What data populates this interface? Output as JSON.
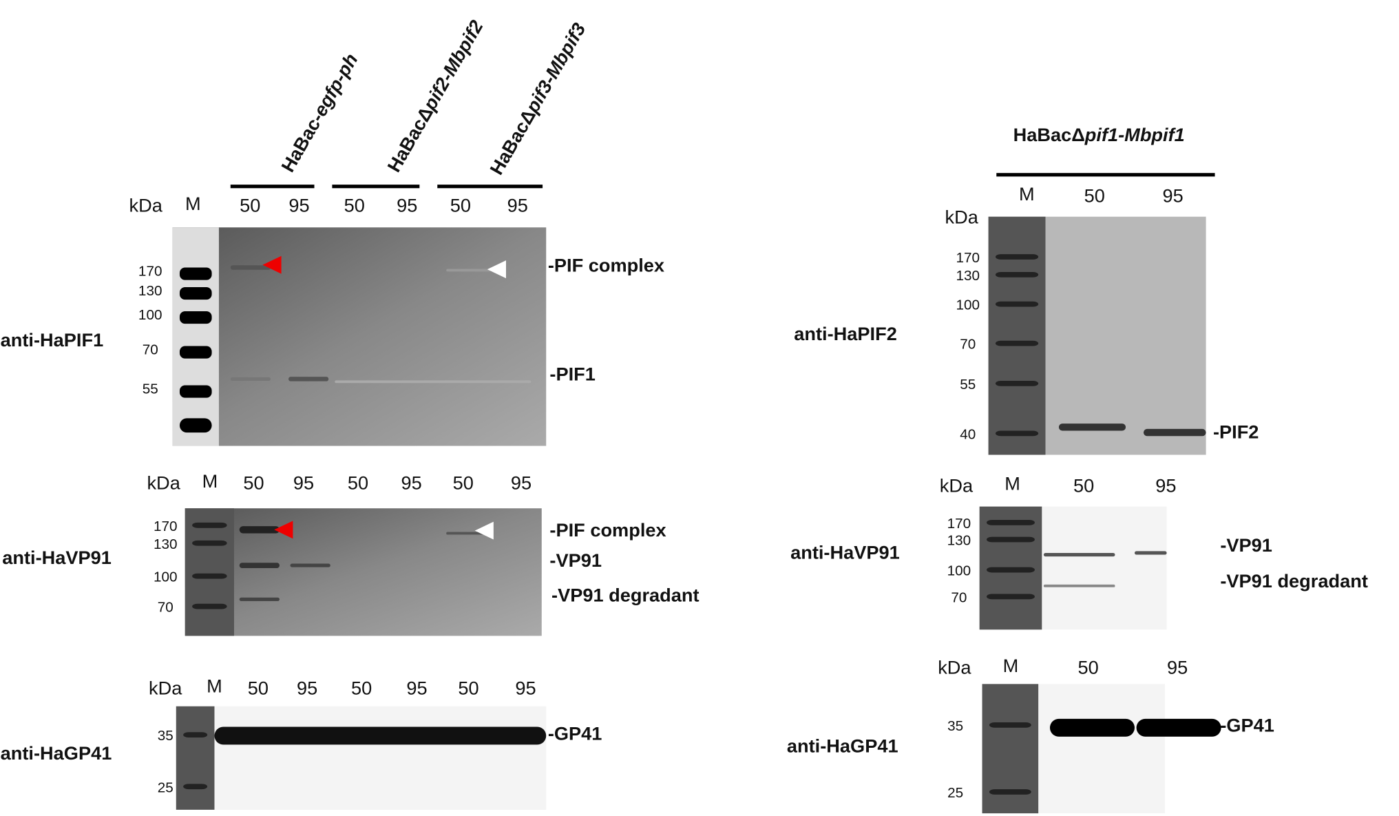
{
  "left": {
    "headers": [
      {
        "a": "HaBac-",
        "b": "egfp-ph"
      },
      {
        "a": "HaBacΔ",
        "b": "pif2-Mbpif2"
      },
      {
        "a": "HaBacΔ",
        "b": "pif3-Mbpif3"
      }
    ],
    "panels": [
      {
        "antibody": "anti-HaPIF1",
        "unit": "kDa",
        "marker": "M",
        "lanes": [
          50,
          95,
          50,
          95,
          50,
          95
        ],
        "markers": [
          170,
          130,
          100,
          70,
          55
        ],
        "bands": [
          "-PIF complex",
          "-PIF1"
        ]
      },
      {
        "antibody": "anti-HaVP91",
        "unit": "kDa",
        "marker": "M",
        "lanes": [
          50,
          95,
          50,
          95,
          50,
          95
        ],
        "markers": [
          170,
          130,
          100,
          70
        ],
        "bands": [
          "-PIF complex",
          "-VP91",
          "-VP91 degradant"
        ]
      },
      {
        "antibody": "anti-HaGP41",
        "unit": "kDa",
        "marker": "M",
        "lanes": [
          50,
          95,
          50,
          95,
          50,
          95
        ],
        "markers": [
          35,
          25
        ],
        "bands": [
          "-GP41"
        ]
      }
    ]
  },
  "right": {
    "title": {
      "a": "HaBacΔ",
      "b": "pif1-Mbpif1"
    },
    "panels": [
      {
        "antibody": "anti-HaPIF2",
        "unit": "kDa",
        "marker": "M",
        "lanes": [
          50,
          95
        ],
        "markers": [
          170,
          130,
          100,
          70,
          55,
          40
        ],
        "bands": [
          "-PIF2"
        ]
      },
      {
        "antibody": "anti-HaVP91",
        "unit": "kDa",
        "marker": "M",
        "lanes": [
          50,
          95
        ],
        "markers": [
          170,
          130,
          100,
          70
        ],
        "bands": [
          "-VP91",
          "-VP91 degradant"
        ]
      },
      {
        "antibody": "anti-HaGP41",
        "unit": "kDa",
        "marker": "M",
        "lanes": [
          50,
          95
        ],
        "markers": [
          35,
          25
        ],
        "bands": [
          "-GP41"
        ]
      }
    ]
  }
}
